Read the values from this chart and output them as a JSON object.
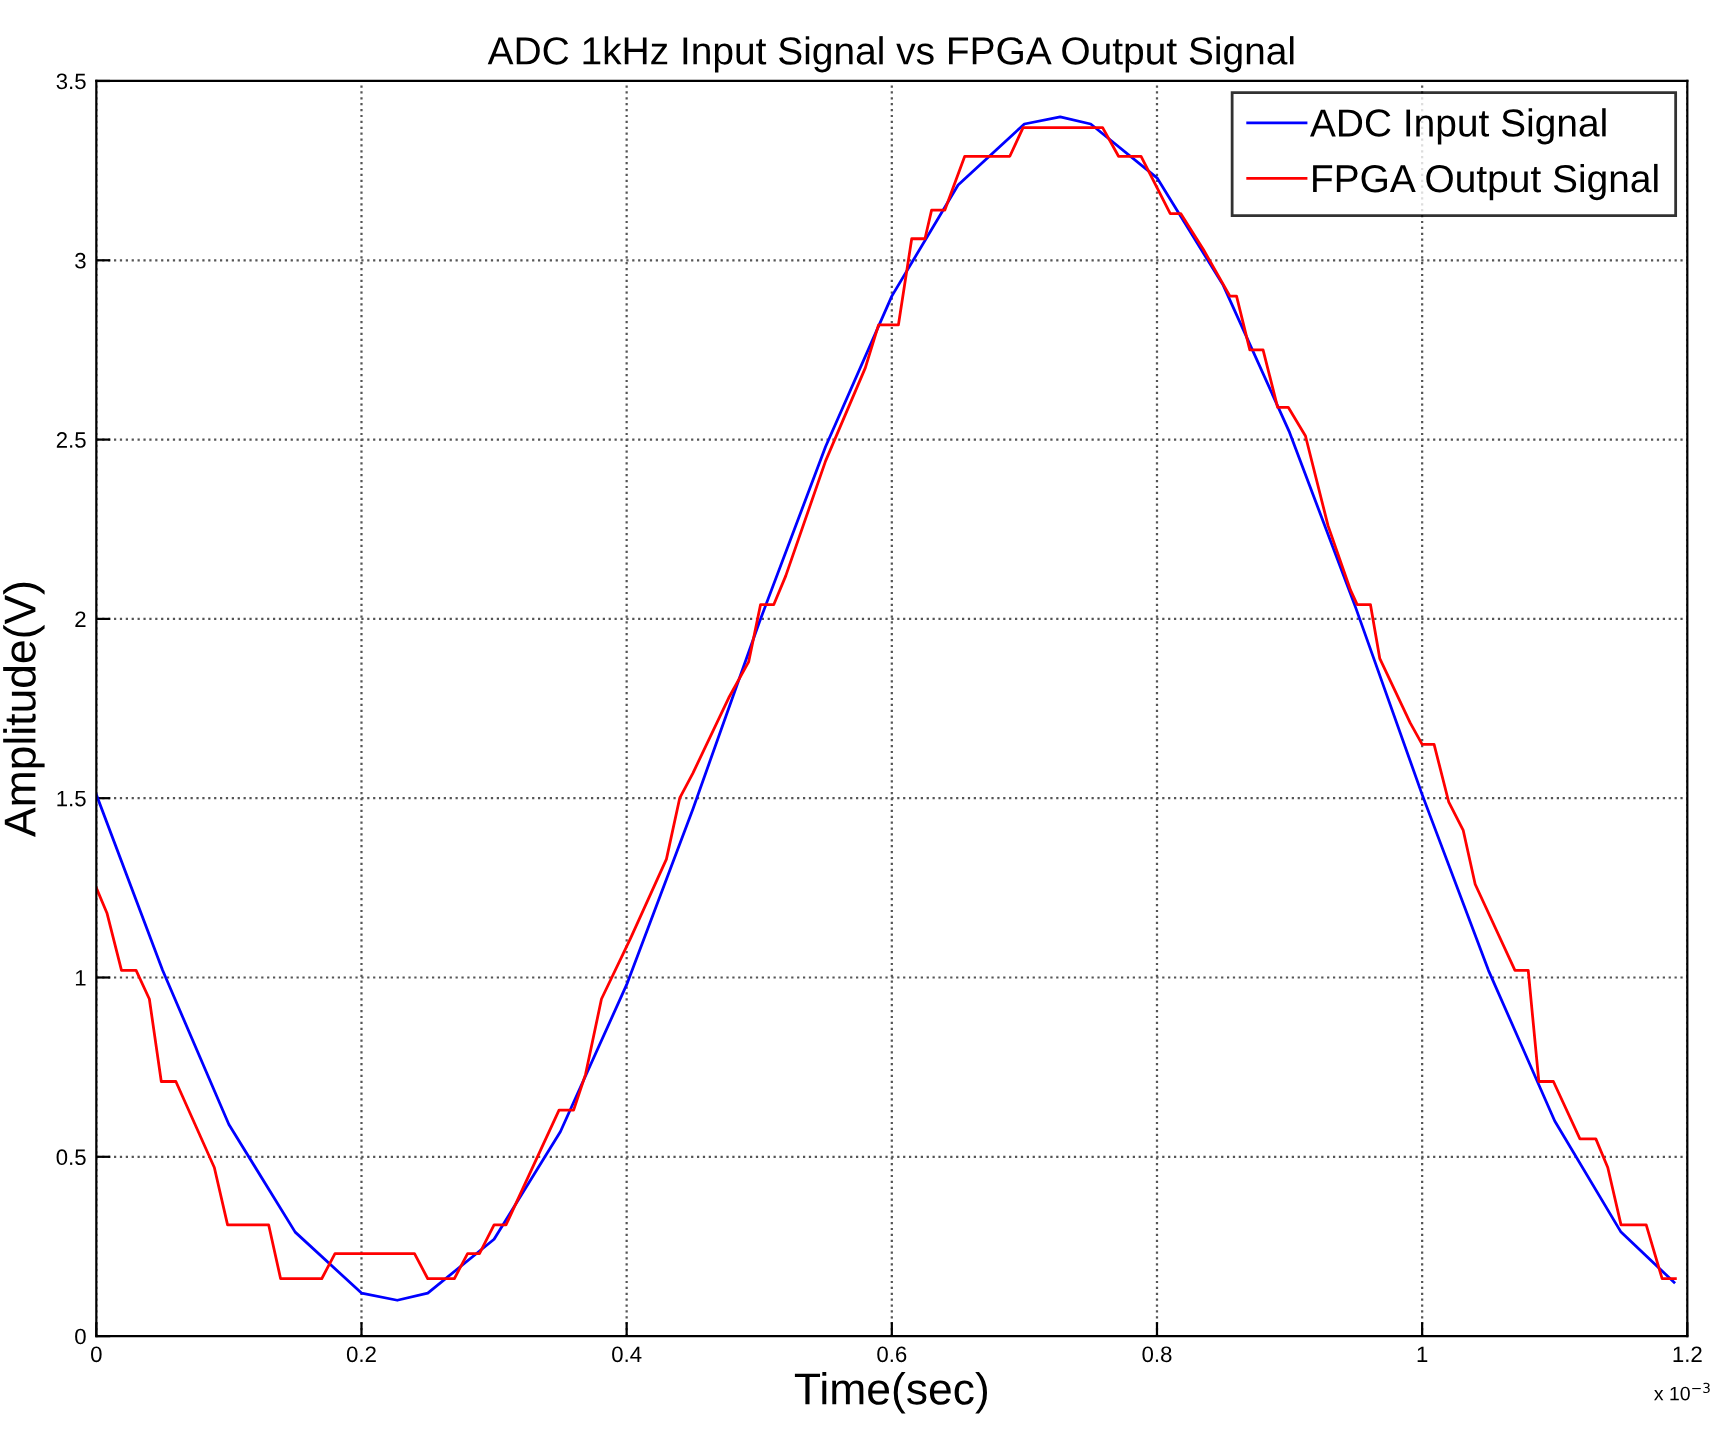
{
  "chart_data": {
    "type": "line",
    "title": "ADC 1kHz Input Signal vs FPGA Output Signal",
    "xlabel": "Time(sec)",
    "ylabel": "Amplitude(V)",
    "annotations": [
      "x 10$^{−3}$"
    ],
    "xlim": [
      0,
      1.2
    ],
    "ylim": [
      0,
      3.5
    ],
    "xticks": [
      0,
      0.2,
      0.4,
      0.6,
      0.8,
      1,
      1.2
    ],
    "yticks": [
      0,
      0.5,
      1,
      1.5,
      2,
      2.5,
      3,
      3.5
    ],
    "grid": true,
    "legend": "top right",
    "line_style": "solid",
    "marker": "none",
    "series": [
      {
        "name": "ADC Input Signal",
        "color": "#0000ff",
        "x": [
          0,
          0.05,
          0.1,
          0.15,
          0.2,
          0.227,
          0.25,
          0.3,
          0.35,
          0.4,
          0.45,
          0.5,
          0.55,
          0.6,
          0.65,
          0.7,
          0.727,
          0.75,
          0.8,
          0.85,
          0.9,
          0.95,
          1.0,
          1.05,
          1.1,
          1.15,
          1.19
        ],
        "values": [
          1.51,
          1.02,
          0.59,
          0.29,
          0.12,
          0.1,
          0.12,
          0.27,
          0.57,
          0.98,
          1.47,
          1.99,
          2.48,
          2.9,
          3.21,
          3.38,
          3.4,
          3.38,
          3.23,
          2.93,
          2.52,
          2.03,
          1.51,
          1.02,
          0.6,
          0.29,
          0.15
        ]
      },
      {
        "name": "FPGA Output Signal",
        "color": "#ff0000",
        "x": [
          0,
          0.008,
          0.019,
          0.03,
          0.04,
          0.049,
          0.06,
          0.089,
          0.099,
          0.13,
          0.139,
          0.17,
          0.18,
          0.24,
          0.25,
          0.27,
          0.28,
          0.289,
          0.3,
          0.309,
          0.349,
          0.36,
          0.369,
          0.381,
          0.403,
          0.43,
          0.44,
          0.45,
          0.477,
          0.492,
          0.501,
          0.511,
          0.52,
          0.55,
          0.58,
          0.59,
          0.605,
          0.615,
          0.625,
          0.63,
          0.64,
          0.655,
          0.67,
          0.689,
          0.699,
          0.759,
          0.771,
          0.788,
          0.81,
          0.818,
          0.835,
          0.855,
          0.86,
          0.87,
          0.88,
          0.891,
          0.899,
          0.912,
          0.929,
          0.946,
          0.951,
          0.961,
          0.968,
          0.991,
          1.0,
          1.009,
          1.02,
          1.031,
          1.04,
          1.07,
          1.08,
          1.088,
          1.099,
          1.119,
          1.131,
          1.14,
          1.15,
          1.169,
          1.181,
          1.191
        ],
        "values": [
          1.25,
          1.18,
          1.02,
          1.02,
          0.94,
          0.71,
          0.71,
          0.47,
          0.31,
          0.31,
          0.16,
          0.16,
          0.23,
          0.23,
          0.16,
          0.16,
          0.23,
          0.23,
          0.31,
          0.31,
          0.63,
          0.63,
          0.73,
          0.94,
          1.11,
          1.33,
          1.5,
          1.57,
          1.78,
          1.88,
          2.04,
          2.04,
          2.12,
          2.44,
          2.7,
          2.82,
          2.82,
          3.06,
          3.06,
          3.14,
          3.14,
          3.29,
          3.29,
          3.29,
          3.37,
          3.37,
          3.29,
          3.29,
          3.13,
          3.13,
          3.03,
          2.9,
          2.9,
          2.75,
          2.75,
          2.59,
          2.59,
          2.51,
          2.26,
          2.08,
          2.04,
          2.04,
          1.89,
          1.71,
          1.65,
          1.65,
          1.49,
          1.41,
          1.26,
          1.02,
          1.02,
          0.71,
          0.71,
          0.55,
          0.55,
          0.47,
          0.31,
          0.31,
          0.16,
          0.16
        ]
      }
    ]
  }
}
